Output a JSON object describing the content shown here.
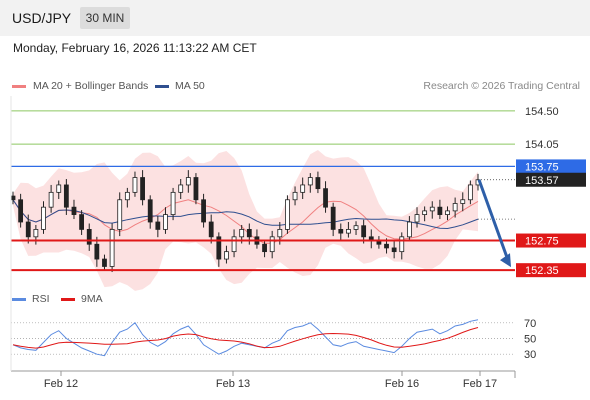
{
  "header": {
    "symbol": "USD/JPY",
    "timeframe": "30 MIN"
  },
  "datetime": "Monday, February 16, 2026 11:13:22 AM CET",
  "legend": {
    "ma20": {
      "label": "MA 20 + Bollinger Bands",
      "color": "#f08080"
    },
    "ma50": {
      "label": "MA 50",
      "color": "#2f4f8f"
    },
    "source": "Research © 2026 Trading Central"
  },
  "chart_data": {
    "type": "candlestick",
    "ylim": [
      152.15,
      154.7
    ],
    "horizontal_levels": [
      {
        "value": 154.5,
        "label": "154.50",
        "kind": "target",
        "color": "#8cc860"
      },
      {
        "value": 154.05,
        "label": "154.05",
        "kind": "target",
        "color": "#8cc860"
      },
      {
        "value": 153.75,
        "label": "153.75",
        "kind": "pivot",
        "color": "#2e6be6"
      },
      {
        "value": 152.75,
        "label": "152.75",
        "kind": "support",
        "color": "#e01818"
      },
      {
        "value": 152.35,
        "label": "152.35",
        "kind": "support",
        "color": "#e01818"
      }
    ],
    "last_price": {
      "value": 153.57,
      "label": "153.57"
    },
    "arrow": {
      "from": 153.57,
      "to": 152.35,
      "color": "#2e5fa8"
    },
    "x_tick_labels": [
      "Feb 12",
      "Feb 13",
      "Feb 16",
      "Feb 17"
    ],
    "close_series": [
      153.3,
      153.0,
      152.8,
      152.9,
      153.2,
      153.4,
      153.5,
      153.2,
      153.1,
      152.9,
      152.7,
      152.5,
      152.4,
      152.9,
      153.3,
      153.4,
      153.6,
      153.3,
      153.0,
      152.9,
      153.1,
      153.4,
      153.5,
      153.6,
      153.3,
      153.0,
      152.8,
      152.5,
      152.6,
      152.8,
      152.9,
      152.8,
      152.7,
      152.6,
      152.8,
      152.9,
      153.3,
      153.4,
      153.5,
      153.6,
      153.45,
      153.2,
      152.9,
      152.85,
      152.9,
      152.95,
      152.8,
      152.75,
      152.7,
      152.65,
      152.6,
      152.8,
      153.0,
      153.1,
      153.15,
      153.2,
      153.1,
      153.15,
      153.25,
      153.3,
      153.5,
      153.57
    ]
  },
  "rsi": {
    "legend_rsi": {
      "label": "RSI",
      "color": "#5b8be0"
    },
    "legend_ma": {
      "label": "9MA",
      "color": "#e01818"
    },
    "levels": [
      "70",
      "50",
      "30"
    ],
    "values": [
      42,
      38,
      36,
      35,
      45,
      55,
      60,
      50,
      44,
      38,
      34,
      30,
      28,
      45,
      58,
      62,
      70,
      55,
      45,
      40,
      46,
      56,
      62,
      66,
      55,
      42,
      36,
      30,
      34,
      40,
      44,
      42,
      40,
      38,
      44,
      48,
      60,
      64,
      66,
      70,
      62,
      52,
      42,
      40,
      44,
      46,
      40,
      38,
      36,
      34,
      32,
      40,
      50,
      58,
      60,
      62,
      56,
      60,
      66,
      68,
      72,
      74
    ]
  }
}
